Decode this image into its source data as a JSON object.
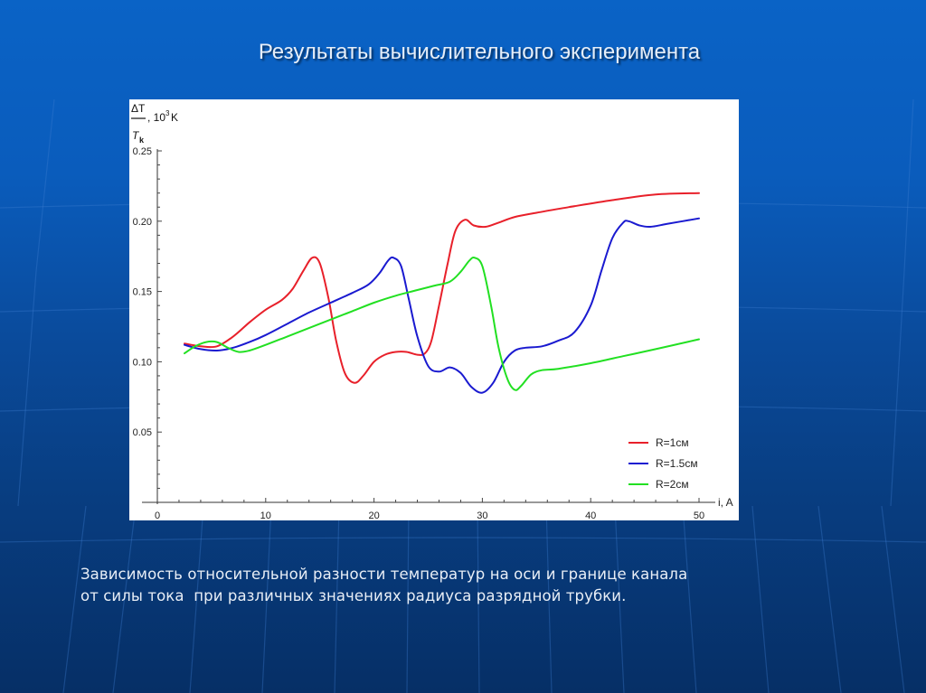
{
  "slide": {
    "title": "Результаты вычислительного эксперимента",
    "caption_line1": "Зависимость относительной разности температур на оси и границе канала",
    "caption_line2": "от силы тока  при различных значениях радиуса разрядной трубки."
  },
  "colors": {
    "background_top": "#0a63c6",
    "background_bottom": "#062f66",
    "red": "#e8202a",
    "blue": "#1a1ad0",
    "green": "#22e022"
  },
  "chart_data": {
    "type": "line",
    "title": "",
    "xlabel": "i, A",
    "ylabel": "ΔT / T_k, 10^3 K",
    "ylabel_parts": {
      "numerator": "ΔT",
      "unit": ", 10",
      "exp": "3",
      "unit_suffix": "K",
      "denominator": "T",
      "denominator_sub": "k"
    },
    "xlim": [
      0,
      50
    ],
    "ylim": [
      0,
      0.25
    ],
    "xticks": [
      0,
      10,
      20,
      30,
      40,
      50
    ],
    "xtick_labels": [
      "0",
      "10",
      "20",
      "30",
      "40",
      "50"
    ],
    "yticks": [
      0.05,
      0.1,
      0.15,
      0.2,
      0.25
    ],
    "ytick_labels": [
      "0.05",
      "0.10",
      "0.15",
      "0.20",
      "0.25"
    ],
    "grid": false,
    "legend_position": "lower right",
    "series": [
      {
        "name": "R=1см",
        "color": "#e8202a",
        "x": [
          2.5,
          4,
          5.5,
          7,
          8.5,
          10,
          11.5,
          12.5,
          13.5,
          14.3,
          15,
          15.8,
          16.5,
          17.3,
          18.2,
          19,
          20,
          21,
          22,
          23,
          24,
          24.7,
          25.3,
          26,
          26.8,
          27.5,
          28.4,
          29.2,
          30.3,
          31.5,
          33,
          35,
          38,
          42,
          46,
          50
        ],
        "y": [
          0.113,
          0.111,
          0.111,
          0.118,
          0.128,
          0.137,
          0.144,
          0.152,
          0.165,
          0.174,
          0.17,
          0.145,
          0.115,
          0.092,
          0.085,
          0.09,
          0.1,
          0.105,
          0.107,
          0.107,
          0.105,
          0.106,
          0.115,
          0.14,
          0.17,
          0.193,
          0.201,
          0.197,
          0.196,
          0.199,
          0.203,
          0.206,
          0.21,
          0.215,
          0.219,
          0.22
        ]
      },
      {
        "name": "R=1.5см",
        "color": "#1a1ad0",
        "x": [
          2.5,
          4,
          5.5,
          7,
          8.5,
          10,
          12,
          14,
          16,
          18,
          19.5,
          20.5,
          21.3,
          21.8,
          22.5,
          23.2,
          24,
          25,
          26,
          27,
          28,
          29,
          30,
          31,
          32,
          33,
          34,
          35.5,
          37,
          38.5,
          40,
          41,
          42,
          43,
          43.5,
          44.5,
          45.5,
          47,
          48.5,
          50
        ],
        "y": [
          0.112,
          0.109,
          0.108,
          0.11,
          0.114,
          0.119,
          0.127,
          0.135,
          0.142,
          0.149,
          0.155,
          0.163,
          0.172,
          0.174,
          0.168,
          0.145,
          0.118,
          0.097,
          0.093,
          0.096,
          0.092,
          0.082,
          0.078,
          0.085,
          0.1,
          0.108,
          0.11,
          0.111,
          0.115,
          0.121,
          0.14,
          0.165,
          0.188,
          0.199,
          0.2,
          0.197,
          0.196,
          0.198,
          0.2,
          0.202
        ]
      },
      {
        "name": "R=2см",
        "color": "#22e022",
        "x": [
          2.5,
          3.5,
          4.5,
          5.5,
          6.5,
          7.5,
          8.5,
          10,
          12,
          14,
          16,
          18,
          20,
          22,
          24,
          25.5,
          27,
          28,
          28.8,
          29.3,
          30,
          30.8,
          31.5,
          32.3,
          33,
          33.6,
          34.5,
          35.5,
          37,
          40,
          43,
          46,
          50
        ],
        "y": [
          0.106,
          0.111,
          0.114,
          0.114,
          0.11,
          0.107,
          0.108,
          0.112,
          0.118,
          0.124,
          0.13,
          0.136,
          0.142,
          0.147,
          0.151,
          0.154,
          0.157,
          0.164,
          0.172,
          0.174,
          0.168,
          0.14,
          0.11,
          0.088,
          0.08,
          0.083,
          0.091,
          0.094,
          0.095,
          0.099,
          0.104,
          0.109,
          0.116
        ]
      }
    ]
  }
}
